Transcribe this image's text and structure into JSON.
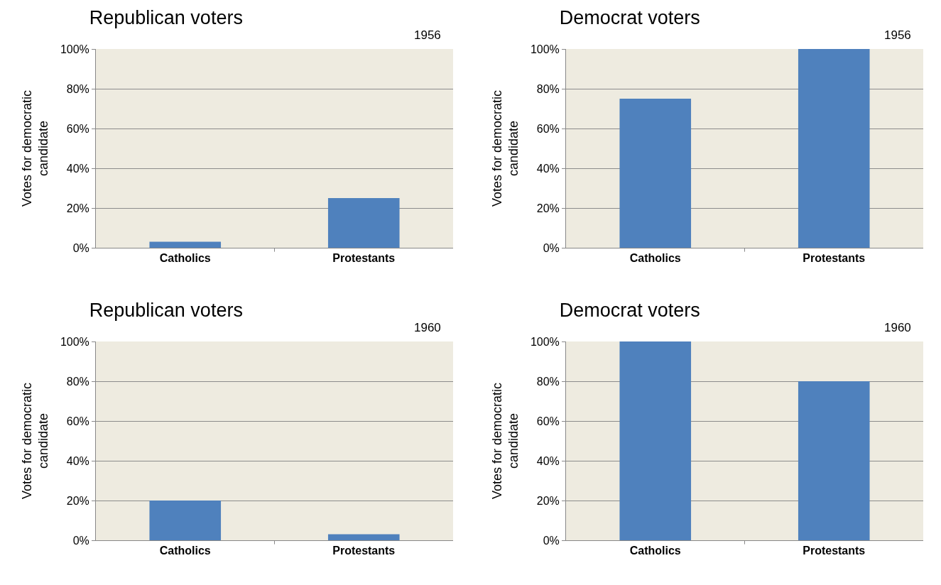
{
  "chart_data": [
    {
      "type": "bar",
      "title": "Republican voters",
      "ylabel": "Votes for democratic candidate",
      "annotations": [
        "1956"
      ],
      "categories": [
        "Catholics",
        "Protestants"
      ],
      "values": [
        3,
        25
      ],
      "color": "#4f81bd",
      "ylim": [
        0,
        100
      ],
      "yticks": [
        {
          "value": 0,
          "label": "0%"
        },
        {
          "value": 20,
          "label": "20%"
        },
        {
          "value": 40,
          "label": "40%"
        },
        {
          "value": 60,
          "label": "60%"
        },
        {
          "value": 80,
          "label": "80%"
        },
        {
          "value": 100,
          "label": "100%"
        }
      ],
      "grid": "y"
    },
    {
      "type": "bar",
      "title": "Democrat voters",
      "ylabel": "Votes for democratic candidate",
      "annotations": [
        "1956"
      ],
      "categories": [
        "Catholics",
        "Protestants"
      ],
      "values": [
        75,
        100
      ],
      "color": "#4f81bd",
      "ylim": [
        0,
        100
      ],
      "yticks": [
        {
          "value": 0,
          "label": "0%"
        },
        {
          "value": 20,
          "label": "20%"
        },
        {
          "value": 40,
          "label": "40%"
        },
        {
          "value": 60,
          "label": "60%"
        },
        {
          "value": 80,
          "label": "80%"
        },
        {
          "value": 100,
          "label": "100%"
        }
      ],
      "grid": "y"
    },
    {
      "type": "bar",
      "title": "Republican voters",
      "ylabel": "Votes for democratic candidate",
      "annotations": [
        "1960"
      ],
      "categories": [
        "Catholics",
        "Protestants"
      ],
      "values": [
        20,
        3
      ],
      "color": "#4f81bd",
      "ylim": [
        0,
        100
      ],
      "yticks": [
        {
          "value": 0,
          "label": "0%"
        },
        {
          "value": 20,
          "label": "20%"
        },
        {
          "value": 40,
          "label": "40%"
        },
        {
          "value": 60,
          "label": "60%"
        },
        {
          "value": 80,
          "label": "80%"
        },
        {
          "value": 100,
          "label": "100%"
        }
      ],
      "grid": "y"
    },
    {
      "type": "bar",
      "title": "Democrat voters",
      "ylabel": "Votes for democratic candidate",
      "annotations": [
        "1960"
      ],
      "categories": [
        "Catholics",
        "Protestants"
      ],
      "values": [
        100,
        80
      ],
      "color": "#4f81bd",
      "ylim": [
        0,
        100
      ],
      "yticks": [
        {
          "value": 0,
          "label": "0%"
        },
        {
          "value": 20,
          "label": "20%"
        },
        {
          "value": 40,
          "label": "40%"
        },
        {
          "value": 60,
          "label": "60%"
        },
        {
          "value": 80,
          "label": "80%"
        },
        {
          "value": 100,
          "label": "100%"
        }
      ],
      "grid": "y"
    }
  ]
}
